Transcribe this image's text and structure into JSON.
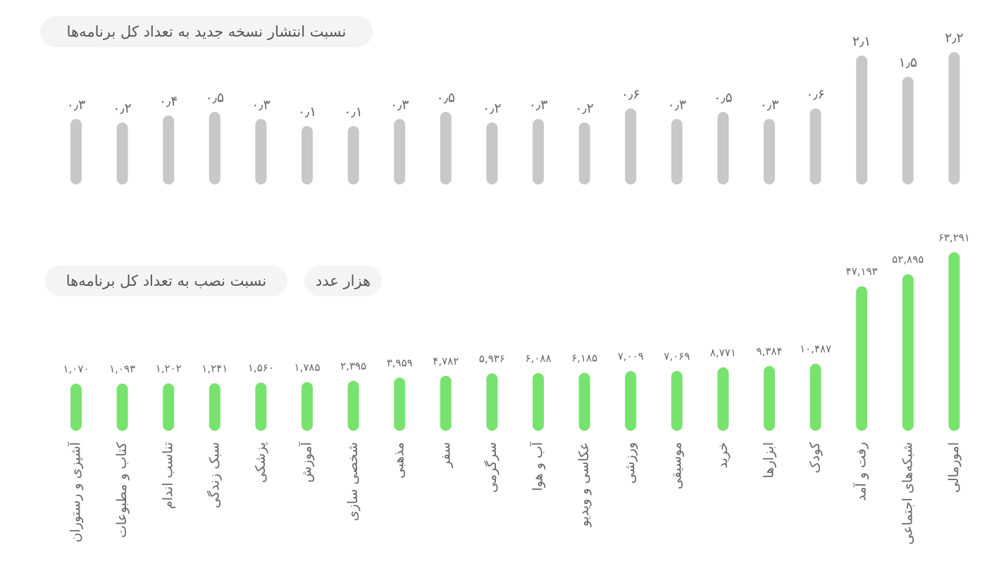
{
  "titles": {
    "update_ratio": "نسبت انتشار نسخه جدید به تعداد کل برنامه‌ها",
    "install_ratio": "نسبت نصب به تعداد کل برنامه‌ها",
    "unit": "هزار عدد"
  },
  "colors": {
    "update_bar": "#c8c8c8",
    "install_bar": "#77e36e",
    "label": "#666666"
  },
  "chart_data": [
    {
      "type": "bar",
      "title": "نسبت انتشار نسخه جدید به تعداد کل برنامه‌ها",
      "categories": [
        "آشپزی و رستوران",
        "کتاب و مطبوعات",
        "تناسب اندام",
        "سبک زندگی",
        "پزشکی",
        "آموزش",
        "شخصی سازی",
        "مذهبی",
        "سفر",
        "سرگرمی",
        "آب و هوا",
        "عکاسی و ویدیو",
        "ورزشی",
        "موسیقی",
        "خرید",
        "ابزارها",
        "کودک",
        "رفت و آمد",
        "شبکه‌های اجتماعی",
        "امورمالی"
      ],
      "values": [
        0.3,
        0.2,
        0.4,
        0.5,
        0.3,
        0.1,
        0.1,
        0.3,
        0.5,
        0.2,
        0.3,
        0.2,
        0.6,
        0.3,
        0.5,
        0.3,
        0.6,
        2.1,
        1.5,
        2.2
      ],
      "value_labels": [
        "۰٫۳",
        "۰٫۲",
        "۰٫۴",
        "۰٫۵",
        "۰٫۳",
        "۰٫۱",
        "۰٫۱",
        "۰٫۳",
        "۰٫۵",
        "۰٫۲",
        "۰٫۳",
        "۰٫۲",
        "۰٫۶",
        "۰٫۳",
        "۰٫۵",
        "۰٫۳",
        "۰٫۶",
        "۲٫۱",
        "۱٫۵",
        "۲٫۲"
      ]
    },
    {
      "type": "bar",
      "title": "نسبت نصب به تعداد کل برنامه‌ها",
      "ylabel": "هزار عدد",
      "categories": [
        "آشپزی و رستوران",
        "کتاب و مطبوعات",
        "تناسب اندام",
        "سبک زندگی",
        "پزشکی",
        "آموزش",
        "شخصی سازی",
        "مذهبی",
        "سفر",
        "سرگرمی",
        "آب و هوا",
        "عکاسی و ویدیو",
        "ورزشی",
        "موسیقی",
        "خرید",
        "ابزارها",
        "کودک",
        "رفت و آمد",
        "شبکه‌های اجتماعی",
        "امورمالی"
      ],
      "values": [
        1070,
        1093,
        1202,
        1241,
        1560,
        1785,
        2395,
        3959,
        4782,
        5936,
        6088,
        6185,
        7009,
        7069,
        8771,
        9384,
        10487,
        47193,
        52895,
        63291
      ],
      "value_labels": [
        "۱,۰۷۰",
        "۱,۰۹۳",
        "۱,۲۰۲",
        "۱,۲۴۱",
        "۱,۵۶۰",
        "۱,۷۸۵",
        "۲,۳۹۵",
        "۳,۹۵۹",
        "۴,۷۸۲",
        "۵,۹۳۶",
        "۶,۰۸۸",
        "۶,۱۸۵",
        "۷,۰۰۹",
        "۷,۰۶۹",
        "۸,۷۷۱",
        "۹,۳۸۴",
        "۱۰,۴۸۷",
        "۴۷,۱۹۳",
        "۵۲,۸۹۵",
        "۶۳,۲۹۱"
      ]
    }
  ]
}
